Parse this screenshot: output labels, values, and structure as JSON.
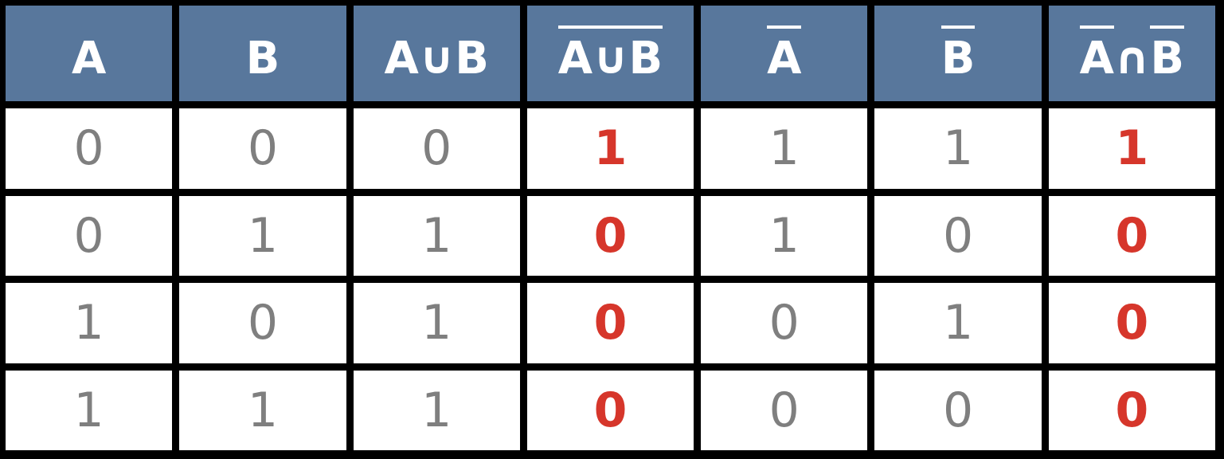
{
  "table": {
    "headers": [
      {
        "text": "A",
        "overbar": false
      },
      {
        "text": "B",
        "overbar": false
      },
      {
        "text": "A∪B",
        "overbar": false
      },
      {
        "text": "A∪B",
        "overbar": true
      },
      {
        "text": "A",
        "overbar": true
      },
      {
        "text": "B",
        "overbar": true
      },
      {
        "text": "A∩B",
        "overbar": "parts",
        "parts": [
          {
            "text": "A",
            "overbar": true
          },
          {
            "text": "∩",
            "overbar": false
          },
          {
            "text": "B",
            "overbar": true
          }
        ]
      }
    ],
    "rows": [
      [
        "0",
        "0",
        "0",
        "1",
        "1",
        "1",
        "1"
      ],
      [
        "0",
        "1",
        "1",
        "0",
        "1",
        "0",
        "0"
      ],
      [
        "1",
        "0",
        "1",
        "0",
        "0",
        "1",
        "0"
      ],
      [
        "1",
        "1",
        "1",
        "0",
        "0",
        "0",
        "0"
      ]
    ],
    "highlight_columns": [
      3,
      6
    ]
  },
  "colors": {
    "header_background": "#58779c",
    "header_text": "#ffffff",
    "cell_background": "#ffffff",
    "cell_text": "#7f7f7f",
    "highlight_text": "#d6362b",
    "grid_lines": "#000000"
  }
}
